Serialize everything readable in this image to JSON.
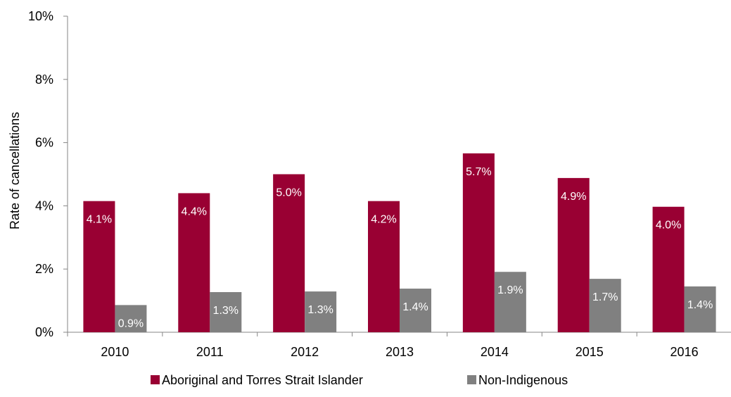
{
  "chart_data": {
    "type": "bar",
    "title": "",
    "xlabel": "",
    "ylabel": "Rate of cancellations",
    "ylim": [
      0,
      10
    ],
    "y_ticks": [
      {
        "value": 0,
        "label": "0%"
      },
      {
        "value": 2,
        "label": "2%"
      },
      {
        "value": 4,
        "label": "4%"
      },
      {
        "value": 6,
        "label": "6%"
      },
      {
        "value": 8,
        "label": "8%"
      },
      {
        "value": 10,
        "label": "10%"
      }
    ],
    "grid": false,
    "legend_position": "bottom",
    "categories": [
      "2010",
      "2011",
      "2012",
      "2013",
      "2014",
      "2015",
      "2016"
    ],
    "series": [
      {
        "name": "Aboriginal and Torres Strait Islander",
        "color": "#990033",
        "values": [
          4.15,
          4.4,
          5.0,
          4.15,
          5.66,
          4.88,
          3.97
        ],
        "labels": [
          "4.1%",
          "4.4%",
          "5.0%",
          "4.2%",
          "5.7%",
          "4.9%",
          "4.0%"
        ]
      },
      {
        "name": "Non-Indigenous",
        "color": "#808080",
        "values": [
          0.86,
          1.27,
          1.29,
          1.38,
          1.91,
          1.69,
          1.45
        ],
        "labels": [
          "0.9%",
          "1.3%",
          "1.3%",
          "1.4%",
          "1.9%",
          "1.7%",
          "1.4%"
        ]
      }
    ]
  }
}
